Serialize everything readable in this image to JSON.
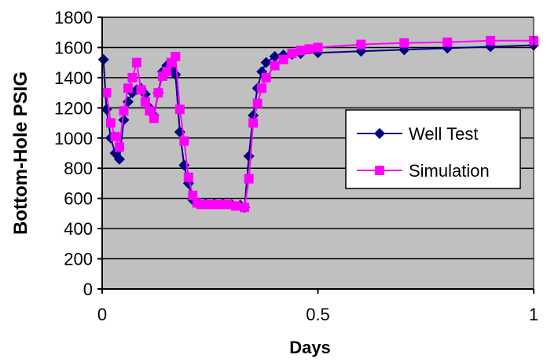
{
  "chart_data": {
    "type": "line",
    "title": "",
    "xlabel": "Days",
    "ylabel": "Bottom-Hole PSIG",
    "xlim": [
      0,
      1
    ],
    "ylim": [
      0,
      1800
    ],
    "xticks": [
      0,
      0.5,
      1
    ],
    "xtick_labels": [
      "0",
      "0.5",
      "1"
    ],
    "yticks": [
      0,
      200,
      400,
      600,
      800,
      1000,
      1200,
      1400,
      1600,
      1800
    ],
    "ytick_labels": [
      "0",
      "200",
      "400",
      "600",
      "800",
      "1000",
      "1200",
      "1400",
      "1600",
      "1800"
    ],
    "grid": "horizontal",
    "plot_background": "#c0c0c0",
    "legend_position": "right",
    "series": [
      {
        "name": "Well Test",
        "color": "#000080",
        "marker": "diamond",
        "points": [
          [
            0.003,
            1520
          ],
          [
            0.01,
            1190
          ],
          [
            0.02,
            1000
          ],
          [
            0.03,
            900
          ],
          [
            0.04,
            860
          ],
          [
            0.05,
            1120
          ],
          [
            0.06,
            1240
          ],
          [
            0.07,
            1300
          ],
          [
            0.08,
            1320
          ],
          [
            0.09,
            1330
          ],
          [
            0.1,
            1290
          ],
          [
            0.11,
            1200
          ],
          [
            0.12,
            1150
          ],
          [
            0.13,
            1300
          ],
          [
            0.14,
            1440
          ],
          [
            0.15,
            1480
          ],
          [
            0.16,
            1460
          ],
          [
            0.17,
            1420
          ],
          [
            0.18,
            1040
          ],
          [
            0.19,
            820
          ],
          [
            0.2,
            700
          ],
          [
            0.21,
            590
          ],
          [
            0.22,
            570
          ],
          [
            0.24,
            565
          ],
          [
            0.26,
            565
          ],
          [
            0.28,
            565
          ],
          [
            0.3,
            560
          ],
          [
            0.32,
            555
          ],
          [
            0.33,
            540
          ],
          [
            0.34,
            880
          ],
          [
            0.35,
            1150
          ],
          [
            0.36,
            1330
          ],
          [
            0.37,
            1440
          ],
          [
            0.38,
            1500
          ],
          [
            0.4,
            1540
          ],
          [
            0.42,
            1550
          ],
          [
            0.44,
            1555
          ],
          [
            0.46,
            1560
          ],
          [
            0.5,
            1565
          ],
          [
            0.6,
            1575
          ],
          [
            0.7,
            1585
          ],
          [
            0.8,
            1595
          ],
          [
            0.9,
            1605
          ],
          [
            1.0,
            1615
          ]
        ]
      },
      {
        "name": "Simulation",
        "color": "#ff00ff",
        "marker": "square",
        "points": [
          [
            0.01,
            1300
          ],
          [
            0.02,
            1100
          ],
          [
            0.03,
            1010
          ],
          [
            0.04,
            940
          ],
          [
            0.05,
            1180
          ],
          [
            0.06,
            1330
          ],
          [
            0.07,
            1400
          ],
          [
            0.08,
            1500
          ],
          [
            0.09,
            1320
          ],
          [
            0.1,
            1240
          ],
          [
            0.11,
            1180
          ],
          [
            0.12,
            1130
          ],
          [
            0.13,
            1300
          ],
          [
            0.14,
            1410
          ],
          [
            0.15,
            1440
          ],
          [
            0.16,
            1500
          ],
          [
            0.17,
            1540
          ],
          [
            0.18,
            1190
          ],
          [
            0.19,
            980
          ],
          [
            0.2,
            740
          ],
          [
            0.21,
            620
          ],
          [
            0.22,
            570
          ],
          [
            0.23,
            560
          ],
          [
            0.25,
            560
          ],
          [
            0.27,
            560
          ],
          [
            0.29,
            560
          ],
          [
            0.31,
            550
          ],
          [
            0.33,
            540
          ],
          [
            0.34,
            730
          ],
          [
            0.35,
            1100
          ],
          [
            0.36,
            1230
          ],
          [
            0.37,
            1330
          ],
          [
            0.38,
            1400
          ],
          [
            0.4,
            1480
          ],
          [
            0.42,
            1520
          ],
          [
            0.44,
            1560
          ],
          [
            0.46,
            1580
          ],
          [
            0.48,
            1590
          ],
          [
            0.5,
            1600
          ],
          [
            0.6,
            1620
          ],
          [
            0.7,
            1630
          ],
          [
            0.8,
            1635
          ],
          [
            0.9,
            1645
          ],
          [
            1.0,
            1645
          ]
        ]
      }
    ]
  }
}
